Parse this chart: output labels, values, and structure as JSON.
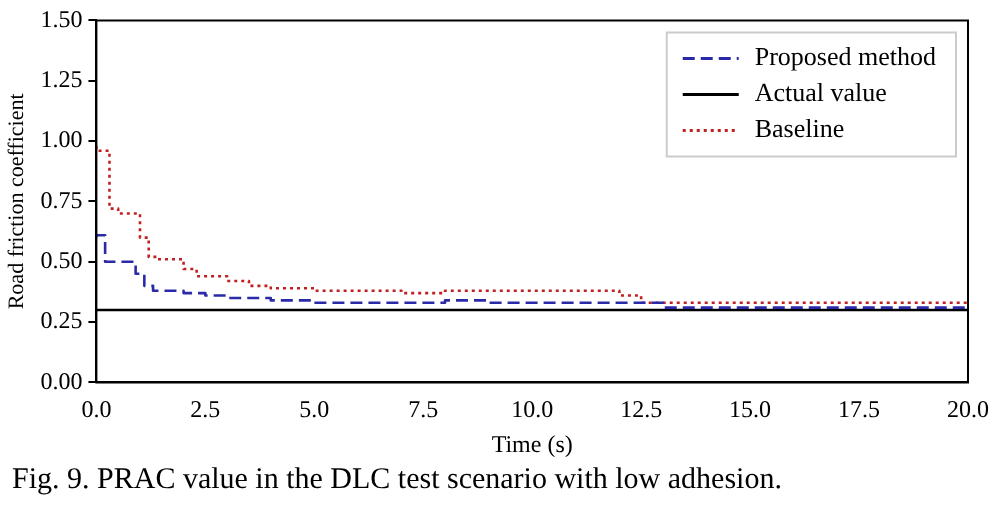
{
  "chart_data": {
    "type": "line",
    "xlabel": "Time (s)",
    "ylabel": "Road friction coefficient",
    "annotations": [
      "Fig. 9.  PRAC value in the DLC test scenario with low adhesion."
    ],
    "series": [
      {
        "name": "Proposed method",
        "type": "step",
        "color": "#2a2aa8",
        "line_style": "dashed",
        "x": [
          0,
          0.2,
          0.3,
          0.9,
          1.1,
          1.3,
          2.0,
          2.5,
          3.0,
          4.0,
          5.0,
          8.0,
          9.0,
          13.0,
          13.5,
          20.0
        ],
        "values": [
          0.6,
          0.61,
          0.5,
          0.5,
          0.45,
          0.4,
          0.38,
          0.37,
          0.36,
          0.35,
          0.34,
          0.33,
          0.34,
          0.33,
          0.31,
          0.31
        ]
      },
      {
        "name": "Actual value",
        "type": "line",
        "color": "#000000",
        "line_style": "solid",
        "x": [
          0,
          20
        ],
        "values": [
          0.3,
          0.3
        ]
      },
      {
        "name": "Baseline",
        "type": "step",
        "color": "#c02020",
        "line_style": "dotted",
        "x": [
          0,
          0.3,
          0.5,
          1.0,
          1.2,
          1.4,
          2.0,
          2.3,
          3.0,
          3.5,
          4.0,
          5.0,
          7.0,
          8.0,
          9.0,
          12.0,
          12.5,
          13.5,
          20.0
        ],
        "values": [
          0.98,
          0.96,
          0.72,
          0.7,
          0.6,
          0.52,
          0.51,
          0.47,
          0.44,
          0.42,
          0.4,
          0.39,
          0.38,
          0.37,
          0.38,
          0.38,
          0.36,
          0.33,
          0.33
        ]
      }
    ],
    "xlim": [
      0,
      20
    ],
    "xticks": [
      {
        "value": 0,
        "label": "0.0"
      },
      {
        "value": 2.5,
        "label": "2.5"
      },
      {
        "value": 5,
        "label": "5.0"
      },
      {
        "value": 7.5,
        "label": "7.5"
      },
      {
        "value": 10,
        "label": "10.0"
      },
      {
        "value": 12.5,
        "label": "12.5"
      },
      {
        "value": 15,
        "label": "15.0"
      },
      {
        "value": 17.5,
        "label": "17.5"
      },
      {
        "value": 20,
        "label": "20.0"
      }
    ],
    "ylim": [
      0,
      1.5
    ],
    "yticks": [
      {
        "value": 0,
        "label": "0.00"
      },
      {
        "value": 0.25,
        "label": "0.25"
      },
      {
        "value": 0.5,
        "label": "0.50"
      },
      {
        "value": 0.75,
        "label": "0.75"
      },
      {
        "value": 1,
        "label": "1.00"
      },
      {
        "value": 1.25,
        "label": "1.25"
      },
      {
        "value": 1.5,
        "label": "1.50"
      }
    ],
    "grid": false,
    "legend": "top right",
    "marker": "none"
  }
}
